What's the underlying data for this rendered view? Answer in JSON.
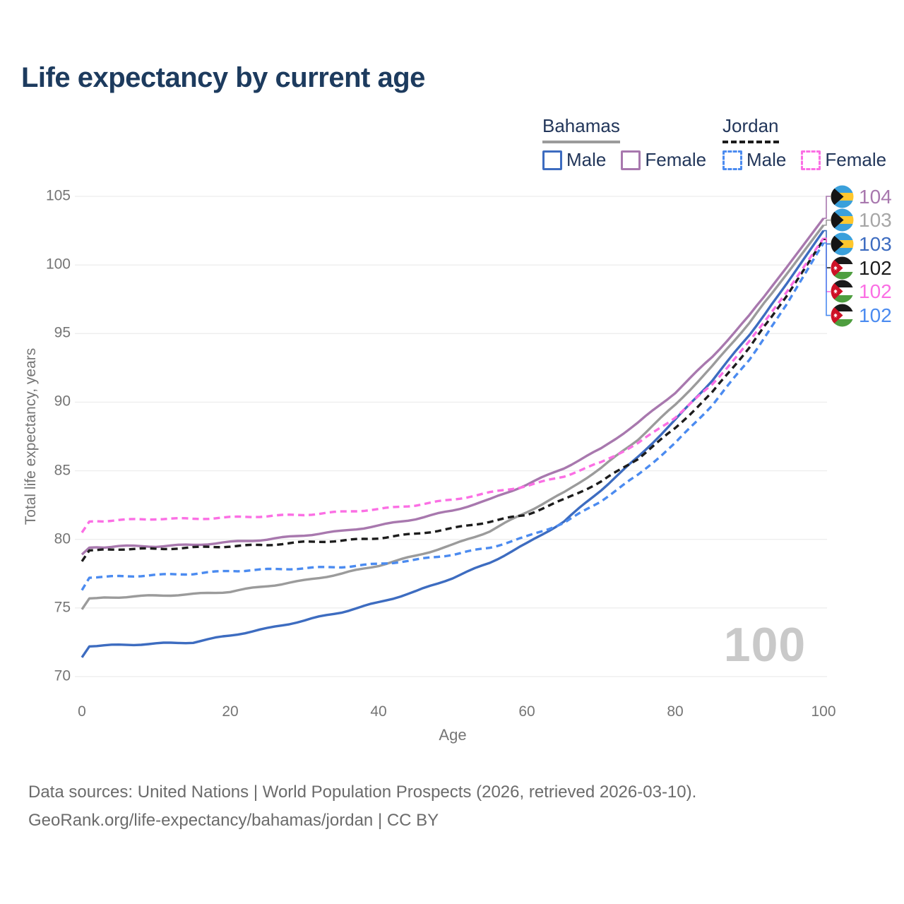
{
  "page": {
    "title": "Life expectancy by current age",
    "watermark": "100",
    "footer_line1": "Data sources: United Nations | World Population Prospects (2026, retrieved 2026-03-10).",
    "footer_line2": "GeoRank.org/life-expectancy/bahamas/jordan | CC BY"
  },
  "colors": {
    "title_text": "#1d3b5e",
    "legend_text": "#22365a",
    "axis_text": "#757575",
    "gridline": "#ececec",
    "watermark": "#c9c9c9",
    "footer_text": "#6b6b6b"
  },
  "legend": {
    "groups": [
      {
        "name": "Bahamas",
        "underline_style": "solid",
        "underline_color": "#9b9b9b",
        "items": [
          {
            "label": "Male",
            "style": "solid",
            "color": "#3d6cc0"
          },
          {
            "label": "Female",
            "style": "solid",
            "color": "#a878ae"
          }
        ]
      },
      {
        "name": "Jordan",
        "underline_style": "dashed",
        "underline_color": "#1c1c1c",
        "items": [
          {
            "label": "Male",
            "style": "dashed",
            "color": "#4b8bf0"
          },
          {
            "label": "Female",
            "style": "dashed",
            "color": "#fb6fe4"
          }
        ]
      }
    ]
  },
  "chart_data": {
    "type": "line",
    "title": "Life expectancy by current age",
    "xlabel": "Age",
    "ylabel": "Total life expectancy, years",
    "x_ticks": [
      "0",
      "20",
      "40",
      "60",
      "80",
      "100"
    ],
    "y_ticks": [
      "70",
      "75",
      "80",
      "85",
      "90",
      "95",
      "100",
      "105"
    ],
    "xlim": [
      0,
      100
    ],
    "ylim": [
      70,
      105
    ],
    "grid": "horizontal",
    "legend_position": "top-right",
    "ages": [
      0,
      1,
      5,
      10,
      15,
      20,
      25,
      30,
      35,
      40,
      45,
      50,
      55,
      60,
      65,
      70,
      75,
      80,
      85,
      90,
      95,
      100
    ],
    "series": [
      {
        "id": "bahamas_all",
        "name": "Bahamas",
        "country": "Bahamas",
        "style": "solid",
        "color": "#9b9b9b",
        "values": [
          74.9,
          75.7,
          75.8,
          75.9,
          76.0,
          76.2,
          76.6,
          77.0,
          77.5,
          78.1,
          78.8,
          79.6,
          80.6,
          82.0,
          83.4,
          85.2,
          87.3,
          89.8,
          92.6,
          95.8,
          99.3,
          102.9
        ]
      },
      {
        "id": "bahamas_female",
        "name": "Bahamas Female",
        "country": "Bahamas",
        "style": "solid",
        "color": "#a878ae",
        "values": [
          78.9,
          79.4,
          79.5,
          79.5,
          79.6,
          79.8,
          80.0,
          80.3,
          80.6,
          81.0,
          81.5,
          82.1,
          82.9,
          84.0,
          85.2,
          86.6,
          88.5,
          90.7,
          93.3,
          96.3,
          99.8,
          103.4
        ]
      },
      {
        "id": "bahamas_male",
        "name": "Bahamas Male",
        "country": "Bahamas",
        "style": "solid",
        "color": "#3d6cc0",
        "values": [
          71.4,
          72.2,
          72.3,
          72.4,
          72.5,
          73.0,
          73.5,
          74.1,
          74.7,
          75.4,
          76.2,
          77.2,
          78.3,
          79.7,
          81.3,
          83.6,
          86.0,
          88.7,
          91.6,
          94.9,
          98.6,
          102.5
        ]
      },
      {
        "id": "jordan_all",
        "name": "Jordan",
        "country": "Jordan",
        "style": "dashed",
        "color": "#1c1c1c",
        "values": [
          78.4,
          79.2,
          79.3,
          79.3,
          79.4,
          79.5,
          79.6,
          79.8,
          79.9,
          80.1,
          80.4,
          80.8,
          81.3,
          81.8,
          82.9,
          84.2,
          85.9,
          88.1,
          90.7,
          94.0,
          97.7,
          101.85
        ]
      },
      {
        "id": "jordan_female",
        "name": "Jordan Female",
        "country": "Jordan",
        "style": "dashed",
        "color": "#fb6fe4",
        "values": [
          80.5,
          81.3,
          81.4,
          81.5,
          81.5,
          81.6,
          81.7,
          81.8,
          82.0,
          82.2,
          82.5,
          82.9,
          83.4,
          83.9,
          84.6,
          85.6,
          87.0,
          88.9,
          91.3,
          94.4,
          98.0,
          101.95
        ]
      },
      {
        "id": "jordan_male",
        "name": "Jordan Male",
        "country": "Jordan",
        "style": "dashed",
        "color": "#4b8bf0",
        "values": [
          76.3,
          77.2,
          77.3,
          77.4,
          77.5,
          77.7,
          77.8,
          77.9,
          78.0,
          78.2,
          78.5,
          78.9,
          79.4,
          80.2,
          81.2,
          82.8,
          84.7,
          87.0,
          89.8,
          93.1,
          97.1,
          101.6
        ]
      }
    ],
    "end_labels": [
      {
        "value": "104",
        "series": "bahamas_female",
        "country": "Bahamas",
        "color": "#a878ae"
      },
      {
        "value": "103",
        "series": "bahamas_all",
        "country": "Bahamas",
        "color": "#a6a6a6"
      },
      {
        "value": "103",
        "series": "bahamas_male",
        "country": "Bahamas",
        "color": "#3d6cc0"
      },
      {
        "value": "102",
        "series": "jordan_all",
        "country": "Jordan",
        "color": "#1c1c1c"
      },
      {
        "value": "102",
        "series": "jordan_female",
        "country": "Jordan",
        "color": "#fb6fe4"
      },
      {
        "value": "102",
        "series": "jordan_male",
        "country": "Jordan",
        "color": "#4b8bf0"
      }
    ],
    "flag_colors": {
      "bahamas": {
        "band": "#3aa0db",
        "gold": "#ffc72c",
        "chevron": "#151515"
      },
      "jordan": {
        "top": "#1a1a1a",
        "mid": "#ffffff",
        "bottom": "#4e9e3f",
        "chevron": "#ce1126",
        "star": "#ffffff"
      }
    }
  }
}
